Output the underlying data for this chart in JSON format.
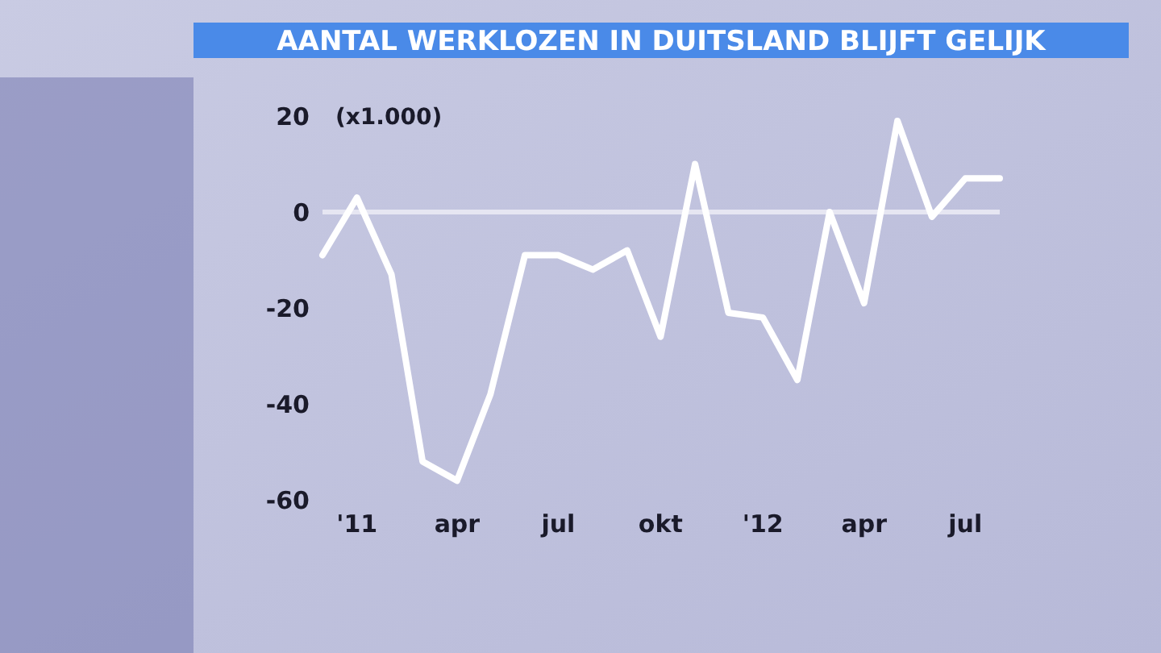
{
  "chart_data": {
    "type": "line",
    "title": "AANTAL WERKLOZEN IN DUITSLAND BLIJFT GELIJK",
    "annotations": [
      "(x1.000)"
    ],
    "x": [
      "2010-12",
      "2011-01",
      "2011-02",
      "2011-03",
      "2011-04",
      "2011-05",
      "2011-06",
      "2011-07",
      "2011-08",
      "2011-09",
      "2011-10",
      "2011-11",
      "2011-12",
      "2012-01",
      "2012-02",
      "2012-03",
      "2012-04",
      "2012-05",
      "2012-06",
      "2012-07",
      "2012-08"
    ],
    "series": [
      {
        "color": "#ffffff",
        "values": [
          -9,
          3,
          -13,
          -52,
          -56,
          -38,
          -9,
          -9,
          -12,
          -8,
          -26,
          10,
          -21,
          -22,
          -35,
          0,
          -19,
          19,
          -1,
          7,
          7
        ]
      }
    ],
    "xlim": [
      "2010-12",
      "2012-08"
    ],
    "xticks": [
      {
        "value": "2011-01",
        "label": "'11"
      },
      {
        "value": "2011-04",
        "label": "apr"
      },
      {
        "value": "2011-07",
        "label": "jul"
      },
      {
        "value": "2011-10",
        "label": "okt"
      },
      {
        "value": "2012-01",
        "label": "'12"
      },
      {
        "value": "2012-04",
        "label": "apr"
      },
      {
        "value": "2012-07",
        "label": "jul"
      }
    ],
    "ylim": [
      -60,
      20
    ],
    "yticks": [
      -60,
      -40,
      -20,
      0,
      20
    ],
    "ref_lines": [
      {
        "axis": "y",
        "value": 0,
        "color": "#e6e6f2"
      }
    ],
    "grid": false,
    "marker": "none",
    "line_style": "solid"
  }
}
